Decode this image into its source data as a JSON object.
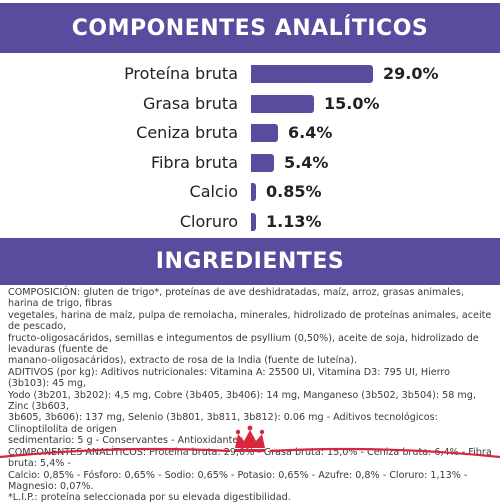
{
  "analytics": {
    "title": "COMPONENTES ANALÍTICOS",
    "rows": [
      {
        "label": "Proteína bruta",
        "value_text": "29.0%"
      },
      {
        "label": "Grasa bruta",
        "value_text": "15.0%"
      },
      {
        "label": "Ceniza bruta",
        "value_text": "6.4%"
      },
      {
        "label": "Fibra bruta",
        "value_text": "5.4%"
      },
      {
        "label": "Calcio",
        "value_text": "0.85%"
      },
      {
        "label": "Cloruro",
        "value_text": "1.13%"
      }
    ]
  },
  "chart_data": {
    "type": "bar",
    "orientation": "horizontal",
    "title": "COMPONENTES ANALÍTICOS",
    "categories": [
      "Proteína bruta",
      "Grasa bruta",
      "Ceniza bruta",
      "Fibra bruta",
      "Calcio",
      "Cloruro"
    ],
    "values": [
      29.0,
      15.0,
      6.4,
      5.4,
      0.85,
      1.13
    ],
    "unit": "%",
    "bar_color": "#5b4b9e",
    "grid": false
  },
  "ingredients": {
    "title": "INGREDIENTES",
    "lines": [
      "COMPOSICIÓN: gluten de trigo*, proteínas de ave deshidratadas, maíz, arroz, grasas animales, harina de trigo, fibras",
      "vegetales, harina de maíz, pulpa de remolacha, minerales, hidrolizado de proteínas animales, aceite de pescado,",
      "fructo-oligosacáridos, semillas e integumentos de psyllium (0,50%), aceite de soja, hidrolizado de levaduras (fuente de",
      "manano-oligosacáridos), extracto de rosa de la India (fuente de luteína).",
      "ADITIVOS (por kg): Aditivos nutricionales: Vitamina A: 25500 UI, Vitamina D3: 795 UI, Hierro (3b103): 45 mg,",
      "Yodo (3b201, 3b202): 4,5 mg, Cobre (3b405, 3b406): 14 mg, Manganeso (3b502, 3b504): 58 mg, Zinc (3b603,",
      "3b605, 3b606): 137 mg, Selenio (3b801, 3b811, 3b812): 0.06 mg - Aditivos tecnológicos: Clinoptilolita de origen",
      "sedimentario: 5 g - Conservantes - Antioxidantes.",
      "COMPONENTES ANALÍTICOS: Proteína bruta: 29,0% - Grasa bruta: 15,0% - Ceniza bruta: 6,4% - Fibra bruta: 5,4% -",
      "Calcio: 0,85% - Fósforo: 0,65% - Sodio: 0,65% - Potasio: 0,65% - Azufre: 0,8% - Cloruro: 1,13% - Magnesio: 0,07%.",
      "*L.I.P.: proteína seleccionada por su elevada digestibilidad."
    ]
  },
  "colors": {
    "brand_purple": "#5b4b9e",
    "footer_red": "#d7263d"
  },
  "logo": {
    "icon": "crown-icon"
  }
}
